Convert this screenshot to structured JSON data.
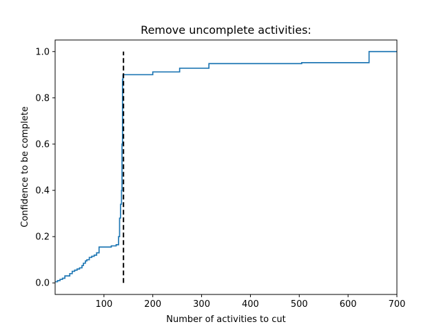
{
  "chart_data": {
    "type": "line",
    "title": "Remove uncomplete activities:",
    "xlabel": "Number of activities to cut",
    "ylabel": "Confidence to be complete",
    "xlim": [
      0,
      700
    ],
    "ylim": [
      -0.05,
      1.05
    ],
    "xticks": [
      100,
      200,
      300,
      400,
      500,
      600,
      700
    ],
    "yticks": [
      0.0,
      0.2,
      0.4,
      0.6,
      0.8,
      1.0
    ],
    "xtick_labels": [
      "100",
      "200",
      "300",
      "400",
      "500",
      "600",
      "700"
    ],
    "ytick_labels": [
      "0.0",
      "0.2",
      "0.4",
      "0.6",
      "0.8",
      "1.0"
    ],
    "grid": false,
    "series": [
      {
        "color": "#1f77b4",
        "step": true,
        "x": [
          0,
          5,
          10,
          15,
          20,
          25,
          30,
          35,
          40,
          45,
          50,
          55,
          58,
          62,
          65,
          70,
          75,
          80,
          85,
          90,
          100,
          115,
          125,
          130,
          132,
          134,
          136,
          137,
          138,
          139,
          140,
          150,
          200,
          250,
          255,
          300,
          315,
          400,
          500,
          505,
          600,
          643,
          700
        ],
        "y": [
          0.005,
          0.01,
          0.015,
          0.02,
          0.03,
          0.03,
          0.04,
          0.05,
          0.055,
          0.06,
          0.065,
          0.075,
          0.085,
          0.095,
          0.1,
          0.11,
          0.115,
          0.12,
          0.13,
          0.155,
          0.155,
          0.16,
          0.165,
          0.2,
          0.28,
          0.34,
          0.4,
          0.6,
          0.88,
          0.9,
          0.9,
          0.9,
          0.912,
          0.912,
          0.928,
          0.928,
          0.948,
          0.948,
          0.948,
          0.952,
          0.952,
          1.0,
          1.0
        ]
      }
    ],
    "reference_line": {
      "x": 140,
      "y_from": 0.0,
      "y_to": 1.0,
      "style": "dashed",
      "color": "#000000"
    }
  }
}
